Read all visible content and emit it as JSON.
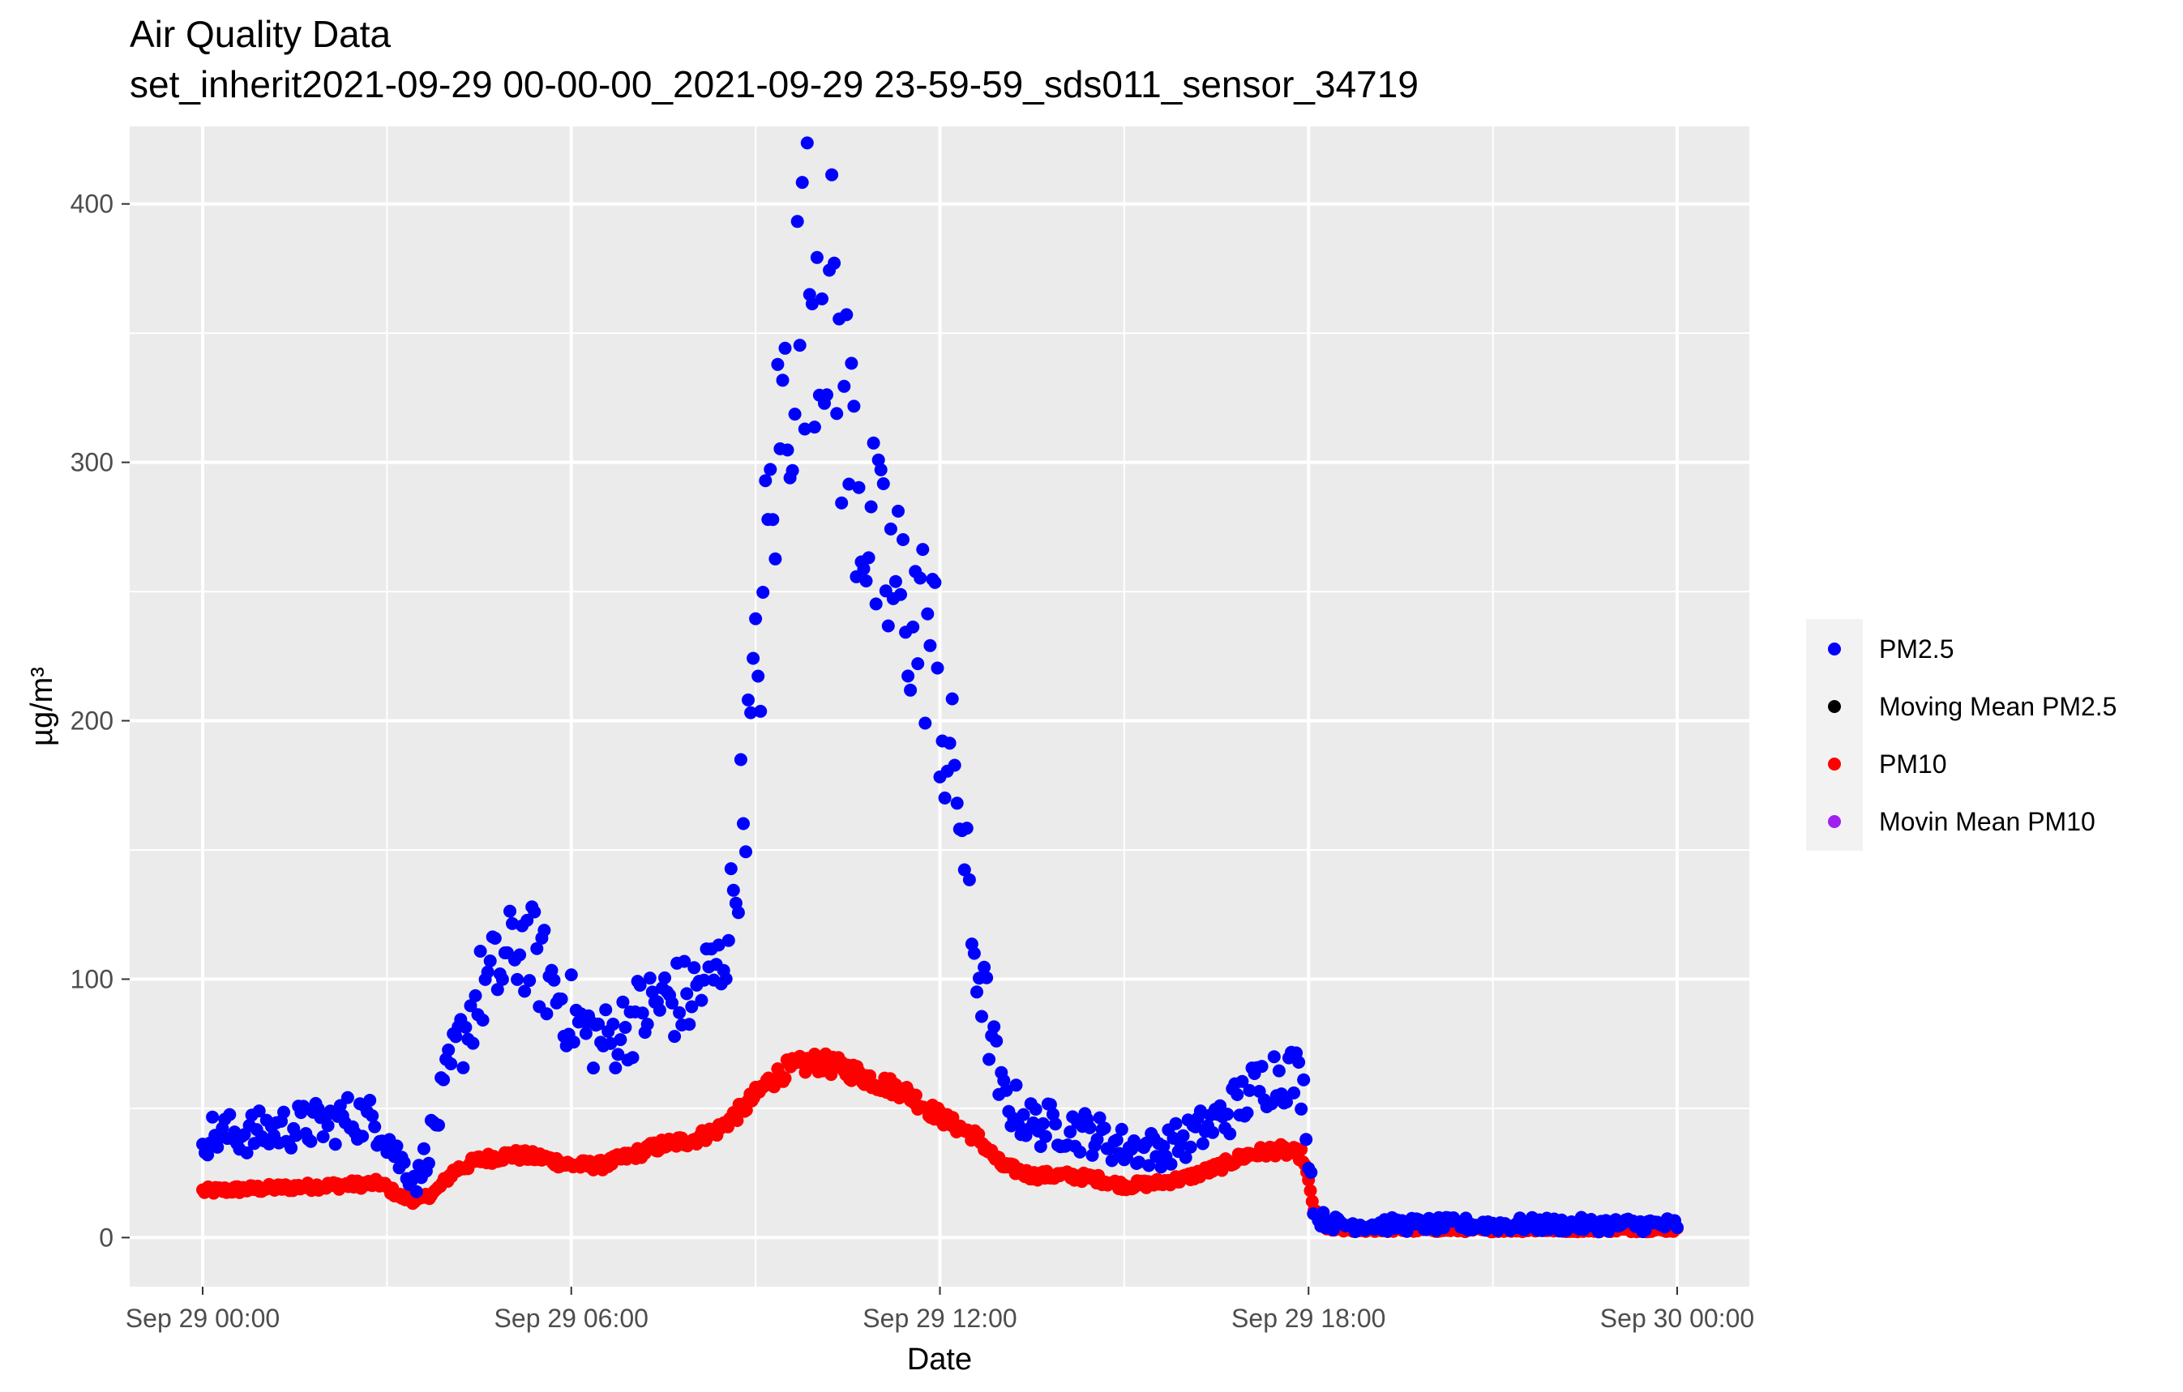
{
  "chart_data": {
    "type": "scatter",
    "title": "Air Quality Data",
    "subtitle": "set_inherit2021-09-29 00-00-00_2021-09-29 23-59-59_sds011_sensor_34719",
    "xlabel": "Date",
    "ylabel": "µg/m³",
    "x_ticks": [
      {
        "label": "Sep 29 00:00",
        "hour": 0
      },
      {
        "label": "Sep 29 06:00",
        "hour": 6
      },
      {
        "label": "Sep 29 12:00",
        "hour": 12
      },
      {
        "label": "Sep 29 18:00",
        "hour": 18
      },
      {
        "label": "Sep 30 00:00",
        "hour": 24
      }
    ],
    "xlim": [
      "Sep 28 22:50",
      "Sep 30 01:10"
    ],
    "ylim": [
      -19,
      430
    ],
    "y_ticks": [
      0,
      100,
      200,
      300,
      400
    ],
    "grid": true,
    "legend_position": "right",
    "colors": {
      "panel_bg": "#ebebeb",
      "grid_major": "#ffffff",
      "pm25": "#0000ff",
      "moving_mean_pm25": "#000000",
      "pm10": "#ff0000",
      "moving_mean_pm10": "#a020f0"
    },
    "legend": [
      {
        "name": "PM2.5",
        "color": "#0000ff"
      },
      {
        "name": "Moving Mean PM2.5",
        "color": "#000000"
      },
      {
        "name": "PM10",
        "color": "#ff0000"
      },
      {
        "name": "Movin Mean PM10",
        "color": "#a020f0"
      }
    ],
    "series": [
      {
        "name": "PM2.5",
        "color": "#0000ff",
        "keypoints_hours": [
          0,
          0.5,
          1,
          1.5,
          2,
          2.5,
          2.9,
          3.2,
          3.5,
          3.8,
          4.1,
          4.5,
          4.9,
          5.2,
          5.5,
          5.9,
          6.2,
          6.6,
          7.0,
          7.5,
          7.9,
          8.2,
          8.4,
          8.6,
          8.8,
          9.0,
          9.2,
          9.5,
          9.8,
          10.1,
          10.4,
          10.7,
          11.0,
          11.3,
          11.6,
          11.9,
          12.1,
          12.3,
          12.5,
          12.7,
          13.0,
          13.5,
          14.0,
          14.5,
          15.0,
          15.5,
          16.0,
          16.5,
          17.0,
          17.4,
          17.7,
          17.9,
          18.1,
          18.5,
          19.0,
          20.0,
          21.0,
          22.0,
          23.0,
          24.0
        ],
        "keypoints_values": [
          40,
          40,
          41,
          43,
          44,
          47,
          44,
          30,
          22,
          45,
          70,
          95,
          105,
          115,
          105,
          90,
          80,
          76,
          85,
          92,
          92,
          100,
          103,
          125,
          170,
          210,
          270,
          330,
          370,
          380,
          330,
          290,
          260,
          250,
          240,
          230,
          185,
          175,
          120,
          95,
          55,
          44,
          43,
          40,
          35,
          34,
          38,
          45,
          55,
          63,
          64,
          60,
          8,
          5,
          5,
          5,
          5,
          5,
          5,
          5
        ]
      },
      {
        "name": "PM10",
        "color": "#ff0000",
        "keypoints_hours": [
          0,
          1,
          2,
          2.9,
          3.2,
          3.5,
          3.8,
          4.1,
          4.5,
          5.0,
          5.5,
          6.0,
          6.5,
          7.0,
          7.5,
          8.0,
          8.4,
          8.8,
          9.2,
          9.5,
          10.0,
          10.5,
          11.0,
          11.4,
          11.8,
          12.2,
          12.6,
          13.0,
          13.5,
          14.0,
          14.5,
          15.0,
          15.5,
          16.0,
          16.5,
          17.0,
          17.5,
          17.9,
          18.1,
          18.3,
          19.0,
          20.0,
          21.0,
          22.0,
          23.0,
          24.0
        ],
        "keypoints_values": [
          18,
          19,
          20,
          21,
          16,
          14,
          18,
          26,
          30,
          32,
          31,
          28,
          28,
          32,
          36,
          38,
          42,
          50,
          60,
          65,
          68,
          65,
          60,
          57,
          50,
          44,
          39,
          28,
          24,
          24,
          23,
          20,
          21,
          23,
          27,
          32,
          34,
          32,
          10,
          3,
          3,
          3,
          3,
          3,
          3,
          3
        ]
      }
    ]
  }
}
